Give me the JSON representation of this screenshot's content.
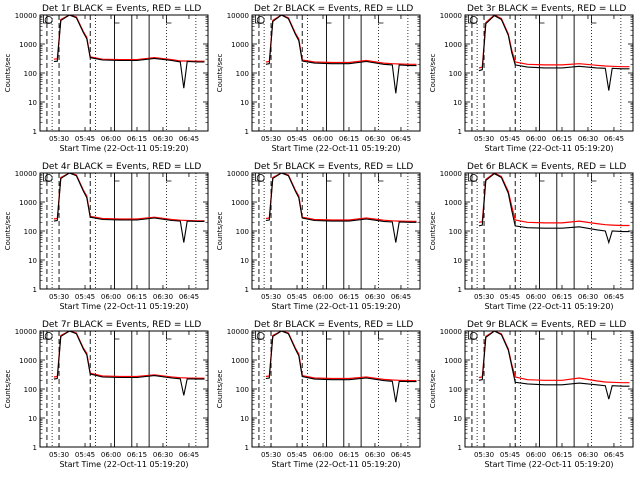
{
  "figure": {
    "x_axis_label": "Start Time (22-Oct-11 05:19:20)",
    "y_axis_label": "Counts/sec",
    "y_tick_labels": [
      "1",
      "10",
      "100",
      "1000",
      "10000"
    ],
    "x_tick_labels": [
      "05:30",
      "05:45",
      "06:00",
      "06:15",
      "06:30",
      "06:45"
    ]
  },
  "colors": {
    "events": "#000000",
    "lld": "#ff0000",
    "frame": "#000000",
    "background": "#ffffff"
  },
  "chart_data": [
    {
      "type": "line",
      "title": "Det 1r BLACK = Events, RED = LLD",
      "xlabel": "Start Time (22-Oct-11 05:19:20)",
      "ylabel": "Counts/sec",
      "ylim": [
        1,
        10000
      ],
      "y_scale": "log",
      "x_ticks": [
        "05:30",
        "05:45",
        "06:00",
        "06:15",
        "06:30",
        "06:45"
      ],
      "grid": false,
      "series": [
        {
          "name": "Events",
          "color": "#000000",
          "x": [
            "05:27",
            "05:29",
            "05:31",
            "05:36",
            "05:40",
            "05:44",
            "05:46",
            "05:48",
            "05:55",
            "06:05",
            "06:15",
            "06:25",
            "06:35",
            "06:40",
            "06:42",
            "06:44",
            "06:50",
            "06:54"
          ],
          "y": [
            250,
            255,
            6500,
            10000,
            8000,
            2500,
            1500,
            340,
            280,
            270,
            270,
            320,
            270,
            240,
            30,
            250,
            240,
            240
          ]
        },
        {
          "name": "LLD",
          "color": "#ff0000",
          "x": [
            "05:27",
            "05:29",
            "05:31",
            "05:36",
            "05:40",
            "05:44",
            "05:46",
            "05:48",
            "05:55",
            "06:05",
            "06:15",
            "06:25",
            "06:35",
            "06:40",
            "06:44",
            "06:50",
            "06:54"
          ],
          "y": [
            300,
            310,
            7000,
            10000,
            8500,
            2700,
            1700,
            360,
            300,
            290,
            290,
            340,
            290,
            260,
            260,
            255,
            255
          ]
        }
      ]
    },
    {
      "type": "line",
      "title": "Det 2r BLACK = Events, RED = LLD",
      "xlabel": "Start Time (22-Oct-11 05:19:20)",
      "ylabel": "Counts/sec",
      "ylim": [
        1,
        10000
      ],
      "y_scale": "log",
      "x_ticks": [
        "05:30",
        "05:45",
        "06:00",
        "06:15",
        "06:30",
        "06:45"
      ],
      "grid": false,
      "series": [
        {
          "name": "Events",
          "color": "#000000",
          "x": [
            "05:27",
            "05:29",
            "05:31",
            "05:36",
            "05:40",
            "05:44",
            "05:46",
            "05:48",
            "05:55",
            "06:05",
            "06:15",
            "06:25",
            "06:35",
            "06:40",
            "06:42",
            "06:44",
            "06:50",
            "06:54"
          ],
          "y": [
            200,
            210,
            6000,
            10000,
            7500,
            2200,
            1300,
            260,
            220,
            210,
            210,
            250,
            200,
            190,
            20,
            190,
            180,
            180
          ]
        },
        {
          "name": "LLD",
          "color": "#ff0000",
          "x": [
            "05:27",
            "05:29",
            "05:31",
            "05:36",
            "05:40",
            "05:44",
            "05:46",
            "05:48",
            "05:55",
            "06:05",
            "06:15",
            "06:25",
            "06:35",
            "06:40",
            "06:44",
            "06:50",
            "06:54"
          ],
          "y": [
            240,
            250,
            6500,
            10000,
            8000,
            2400,
            1500,
            280,
            240,
            230,
            230,
            270,
            220,
            210,
            205,
            200,
            200
          ]
        }
      ]
    },
    {
      "type": "line",
      "title": "Det 3r BLACK = Events, RED = LLD",
      "xlabel": "Start Time (22-Oct-11 05:19:20)",
      "ylabel": "Counts/sec",
      "ylim": [
        1,
        10000
      ],
      "y_scale": "log",
      "x_ticks": [
        "05:30",
        "05:45",
        "06:00",
        "06:15",
        "06:30",
        "06:45"
      ],
      "grid": false,
      "series": [
        {
          "name": "Events",
          "color": "#000000",
          "x": [
            "05:27",
            "05:29",
            "05:31",
            "05:36",
            "05:40",
            "05:44",
            "05:46",
            "05:48",
            "05:55",
            "06:05",
            "06:15",
            "06:25",
            "06:35",
            "06:40",
            "06:42",
            "06:44",
            "06:50",
            "06:54"
          ],
          "y": [
            120,
            130,
            5000,
            9500,
            7000,
            2000,
            500,
            190,
            160,
            150,
            150,
            170,
            150,
            145,
            25,
            145,
            140,
            140
          ]
        },
        {
          "name": "LLD",
          "color": "#ff0000",
          "x": [
            "05:27",
            "05:29",
            "05:31",
            "05:36",
            "05:40",
            "05:44",
            "05:46",
            "05:48",
            "05:55",
            "06:05",
            "06:15",
            "06:25",
            "06:35",
            "06:40",
            "06:44",
            "06:50",
            "06:54"
          ],
          "y": [
            150,
            160,
            5500,
            10000,
            7500,
            2200,
            600,
            240,
            200,
            190,
            190,
            210,
            185,
            175,
            170,
            165,
            165
          ]
        }
      ]
    },
    {
      "type": "line",
      "title": "Det 4r BLACK = Events, RED = LLD",
      "xlabel": "Start Time (22-Oct-11 05:19:20)",
      "ylabel": "Counts/sec",
      "ylim": [
        1,
        10000
      ],
      "y_scale": "log",
      "x_ticks": [
        "05:30",
        "05:45",
        "06:00",
        "06:15",
        "06:30",
        "06:45"
      ],
      "grid": false,
      "series": [
        {
          "name": "Events",
          "color": "#000000",
          "x": [
            "05:27",
            "05:29",
            "05:31",
            "05:36",
            "05:40",
            "05:44",
            "05:46",
            "05:48",
            "05:55",
            "06:05",
            "06:15",
            "06:25",
            "06:35",
            "06:40",
            "06:42",
            "06:44",
            "06:50",
            "06:54"
          ],
          "y": [
            220,
            230,
            6500,
            10000,
            8000,
            2400,
            1400,
            300,
            250,
            240,
            240,
            280,
            230,
            220,
            40,
            220,
            215,
            215
          ]
        },
        {
          "name": "LLD",
          "color": "#ff0000",
          "x": [
            "05:27",
            "05:29",
            "05:31",
            "05:36",
            "05:40",
            "05:44",
            "05:46",
            "05:48",
            "05:55",
            "06:05",
            "06:15",
            "06:25",
            "06:35",
            "06:40",
            "06:44",
            "06:50",
            "06:54"
          ],
          "y": [
            260,
            270,
            7000,
            10000,
            8500,
            2600,
            1600,
            320,
            270,
            260,
            260,
            300,
            250,
            235,
            230,
            225,
            225
          ]
        }
      ]
    },
    {
      "type": "line",
      "title": "Det 5r BLACK = Events, RED = LLD",
      "xlabel": "Start Time (22-Oct-11 05:19:20)",
      "ylabel": "Counts/sec",
      "ylim": [
        1,
        10000
      ],
      "y_scale": "log",
      "x_ticks": [
        "05:30",
        "05:45",
        "06:00",
        "06:15",
        "06:30",
        "06:45"
      ],
      "grid": false,
      "series": [
        {
          "name": "Events",
          "color": "#000000",
          "x": [
            "05:27",
            "05:29",
            "05:31",
            "05:36",
            "05:40",
            "05:44",
            "05:46",
            "05:48",
            "05:55",
            "06:05",
            "06:15",
            "06:25",
            "06:35",
            "06:40",
            "06:42",
            "06:44",
            "06:50",
            "06:54"
          ],
          "y": [
            230,
            240,
            6500,
            10000,
            8000,
            2400,
            1400,
            280,
            230,
            220,
            220,
            260,
            215,
            205,
            40,
            205,
            200,
            200
          ]
        },
        {
          "name": "LLD",
          "color": "#ff0000",
          "x": [
            "05:27",
            "05:29",
            "05:31",
            "05:36",
            "05:40",
            "05:44",
            "05:46",
            "05:48",
            "05:55",
            "06:05",
            "06:15",
            "06:25",
            "06:35",
            "06:40",
            "06:44",
            "06:50",
            "06:54"
          ],
          "y": [
            270,
            280,
            7000,
            10000,
            8500,
            2600,
            1600,
            300,
            250,
            240,
            240,
            280,
            235,
            225,
            220,
            215,
            215
          ]
        }
      ]
    },
    {
      "type": "line",
      "title": "Det 6r BLACK = Events, RED = LLD",
      "xlabel": "Start Time (22-Oct-11 05:19:20)",
      "ylabel": "Counts/sec",
      "ylim": [
        1,
        10000
      ],
      "y_scale": "log",
      "x_ticks": [
        "05:30",
        "05:45",
        "06:00",
        "06:15",
        "06:30",
        "06:45"
      ],
      "grid": false,
      "series": [
        {
          "name": "Events",
          "color": "#000000",
          "x": [
            "05:27",
            "05:29",
            "05:31",
            "05:36",
            "05:40",
            "05:44",
            "05:46",
            "05:48",
            "05:55",
            "06:05",
            "06:15",
            "06:25",
            "06:35",
            "06:40",
            "06:42",
            "06:44",
            "06:50",
            "06:54"
          ],
          "y": [
            150,
            160,
            5500,
            9500,
            7000,
            2000,
            500,
            150,
            130,
            125,
            125,
            140,
            110,
            100,
            40,
            100,
            95,
            95
          ]
        },
        {
          "name": "LLD",
          "color": "#ff0000",
          "x": [
            "05:27",
            "05:29",
            "05:31",
            "05:36",
            "05:40",
            "05:44",
            "05:46",
            "05:48",
            "05:55",
            "06:05",
            "06:15",
            "06:25",
            "06:35",
            "06:40",
            "06:44",
            "06:50",
            "06:54"
          ],
          "y": [
            200,
            210,
            6000,
            10000,
            7500,
            2300,
            700,
            240,
            200,
            190,
            190,
            220,
            180,
            165,
            160,
            155,
            155
          ]
        }
      ]
    },
    {
      "type": "line",
      "title": "Det 7r BLACK = Events, RED = LLD",
      "xlabel": "Start Time (22-Oct-11 05:19:20)",
      "ylabel": "Counts/sec",
      "ylim": [
        1,
        10000
      ],
      "y_scale": "log",
      "x_ticks": [
        "05:30",
        "05:45",
        "06:00",
        "06:15",
        "06:30",
        "06:45"
      ],
      "grid": false,
      "series": [
        {
          "name": "Events",
          "color": "#000000",
          "x": [
            "05:27",
            "05:29",
            "05:31",
            "05:36",
            "05:40",
            "05:44",
            "05:46",
            "05:48",
            "05:55",
            "06:05",
            "06:15",
            "06:25",
            "06:35",
            "06:40",
            "06:42",
            "06:44",
            "06:50",
            "06:54"
          ],
          "y": [
            220,
            230,
            6500,
            10000,
            8000,
            2400,
            1500,
            330,
            260,
            250,
            250,
            290,
            240,
            225,
            60,
            225,
            220,
            220
          ]
        },
        {
          "name": "LLD",
          "color": "#ff0000",
          "x": [
            "05:27",
            "05:29",
            "05:31",
            "05:36",
            "05:40",
            "05:44",
            "05:46",
            "05:48",
            "05:55",
            "06:05",
            "06:15",
            "06:25",
            "06:35",
            "06:40",
            "06:44",
            "06:50",
            "06:54"
          ],
          "y": [
            260,
            270,
            7000,
            10000,
            8500,
            2600,
            1700,
            350,
            280,
            270,
            270,
            310,
            260,
            245,
            240,
            235,
            235
          ]
        }
      ]
    },
    {
      "type": "line",
      "title": "Det 8r BLACK = Events, RED = LLD",
      "xlabel": "Start Time (22-Oct-11 05:19:20)",
      "ylabel": "Counts/sec",
      "ylim": [
        1,
        10000
      ],
      "y_scale": "log",
      "x_ticks": [
        "05:30",
        "05:45",
        "06:00",
        "06:15",
        "06:30",
        "06:45"
      ],
      "grid": false,
      "series": [
        {
          "name": "Events",
          "color": "#000000",
          "x": [
            "05:27",
            "05:29",
            "05:31",
            "05:36",
            "05:40",
            "05:44",
            "05:46",
            "05:48",
            "05:55",
            "06:05",
            "06:15",
            "06:25",
            "06:35",
            "06:40",
            "06:42",
            "06:44",
            "06:50",
            "06:54"
          ],
          "y": [
            230,
            240,
            6500,
            10000,
            8000,
            2400,
            1400,
            270,
            220,
            210,
            210,
            240,
            195,
            185,
            35,
            185,
            180,
            180
          ]
        },
        {
          "name": "LLD",
          "color": "#ff0000",
          "x": [
            "05:27",
            "05:29",
            "05:31",
            "05:36",
            "05:40",
            "05:44",
            "05:46",
            "05:48",
            "05:55",
            "06:05",
            "06:15",
            "06:25",
            "06:35",
            "06:40",
            "06:44",
            "06:50",
            "06:54"
          ],
          "y": [
            270,
            280,
            7000,
            10000,
            8500,
            2600,
            1600,
            290,
            240,
            230,
            230,
            260,
            215,
            205,
            200,
            195,
            195
          ]
        }
      ]
    },
    {
      "type": "line",
      "title": "Det 9r BLACK = Events, RED = LLD",
      "xlabel": "Start Time (22-Oct-11 05:19:20)",
      "ylabel": "Counts/sec",
      "ylim": [
        1,
        10000
      ],
      "y_scale": "log",
      "x_ticks": [
        "05:30",
        "05:45",
        "06:00",
        "06:15",
        "06:30",
        "06:45"
      ],
      "grid": false,
      "series": [
        {
          "name": "Events",
          "color": "#000000",
          "x": [
            "05:27",
            "05:29",
            "05:31",
            "05:36",
            "05:40",
            "05:44",
            "05:46",
            "05:48",
            "05:55",
            "06:05",
            "06:15",
            "06:25",
            "06:35",
            "06:40",
            "06:42",
            "06:44",
            "06:50",
            "06:54"
          ],
          "y": [
            200,
            210,
            6000,
            10000,
            7500,
            2200,
            600,
            170,
            150,
            140,
            140,
            160,
            140,
            130,
            45,
            130,
            125,
            125
          ]
        },
        {
          "name": "LLD",
          "color": "#ff0000",
          "x": [
            "05:27",
            "05:29",
            "05:31",
            "05:36",
            "05:40",
            "05:44",
            "05:46",
            "05:48",
            "05:55",
            "06:05",
            "06:15",
            "06:25",
            "06:35",
            "06:40",
            "06:44",
            "06:50",
            "06:54"
          ],
          "y": [
            250,
            260,
            6500,
            10000,
            8000,
            2400,
            700,
            260,
            210,
            200,
            200,
            240,
            190,
            175,
            170,
            165,
            165
          ]
        }
      ]
    }
  ]
}
